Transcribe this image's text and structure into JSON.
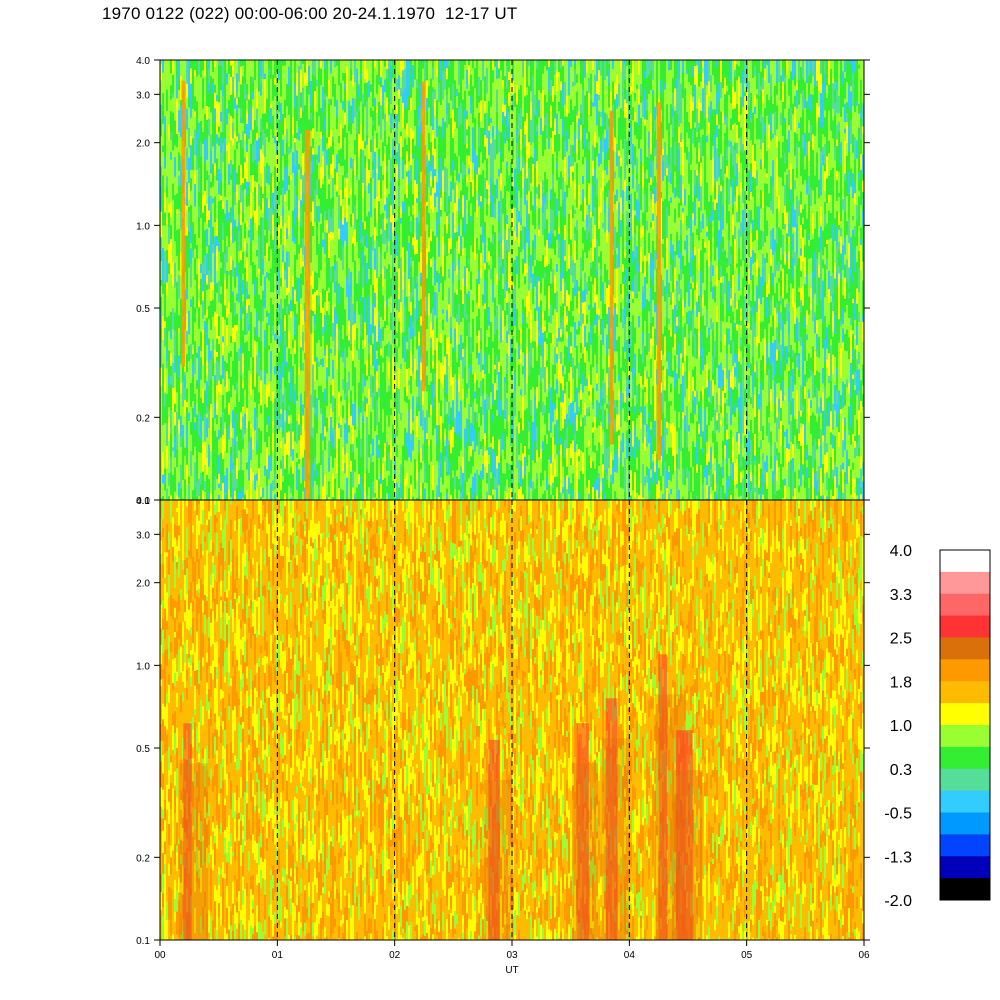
{
  "title": "1970 0122 (022) 00:00-06:00 20-24.1.1970  12-17 UT",
  "chart_data": {
    "type": "heatmap",
    "title": "1970 0122 (022) 00:00-06:00 20-24.1.1970  12-17 UT",
    "xlabel": "UT",
    "x_range": [
      0,
      6
    ],
    "x_ticks": [
      "00",
      "01",
      "02",
      "03",
      "04",
      "05",
      "06"
    ],
    "y_scale": "log",
    "y_range": [
      0.1,
      4.0
    ],
    "y_ticks": [
      "4.0",
      "3.0",
      "2.0",
      "1.0",
      "0.5",
      "0.2",
      "0.1"
    ],
    "y_tick_values": [
      4.0,
      3.0,
      2.0,
      1.0,
      0.5,
      0.2,
      0.1
    ],
    "dashed_gridlines_at": [
      1,
      2,
      3,
      4,
      5
    ],
    "colorbar": {
      "labels": [
        "4.0",
        "3.3",
        "2.5",
        "1.8",
        "1.0",
        "0.3",
        "-0.5",
        "-1.3",
        "-2.0"
      ],
      "label_values": [
        4.0,
        3.3,
        2.5,
        1.8,
        1.0,
        0.3,
        -0.5,
        -1.3,
        -2.0
      ],
      "colors_top_to_bottom": [
        "#ffffff",
        "#ff9999",
        "#ff6666",
        "#ff3333",
        "#d9700a",
        "#ff9900",
        "#ffbb00",
        "#ffff00",
        "#99ff33",
        "#33ee33",
        "#55dd99",
        "#33ccff",
        "#0099ff",
        "#0044ff",
        "#0000bb",
        "#000000"
      ]
    },
    "panels": [
      {
        "name": "upper",
        "dominant_colors": [
          "#99ff33",
          "#33ee33",
          "#55dd99",
          "#ffff00"
        ],
        "streaks_at_ut": [
          0.2,
          1.25,
          2.25,
          3.85,
          4.25
        ],
        "streak_color": "#ff9900"
      },
      {
        "name": "lower",
        "dominant_colors": [
          "#ffbb00",
          "#ff9900",
          "#ffff00",
          "#99ff33"
        ],
        "hotspots_at_ut": [
          0.25,
          2.85,
          3.6,
          3.85,
          4.3,
          4.45
        ],
        "hotspot_color": "#ff3333"
      }
    ]
  }
}
